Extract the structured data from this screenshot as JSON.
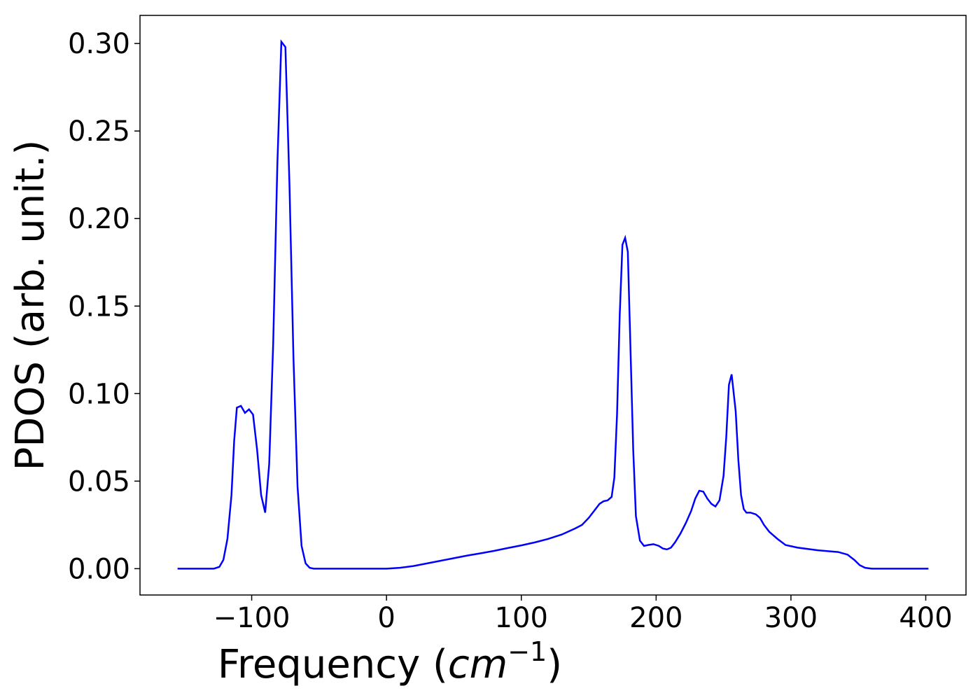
{
  "chart_data": {
    "type": "line",
    "x_label": [
      "Frequency (",
      "cm",
      "−1",
      ")"
    ],
    "y_label": "PDOS (arb. unit.)",
    "x": [
      -155,
      -140,
      -128,
      -124,
      -121,
      -118,
      -115,
      -113,
      -111,
      -108,
      -105,
      -102,
      -99,
      -96,
      -93,
      -90,
      -87,
      -84,
      -81,
      -78,
      -75,
      -72,
      -69,
      -66,
      -63,
      -60,
      -57,
      -54,
      -30,
      0,
      10,
      20,
      30,
      40,
      50,
      60,
      70,
      80,
      90,
      100,
      110,
      120,
      130,
      140,
      145,
      150,
      155,
      158,
      161,
      164,
      167,
      169,
      171,
      173,
      175,
      177,
      179,
      181,
      183,
      185,
      188,
      191,
      194,
      198,
      202,
      205,
      208,
      211,
      214,
      218,
      222,
      226,
      229,
      232,
      235,
      238,
      241,
      244,
      247,
      250,
      252,
      254,
      256,
      259,
      261,
      263,
      265,
      267,
      270,
      274,
      277,
      280,
      284,
      290,
      296,
      305,
      320,
      335,
      342,
      347,
      351,
      355,
      360,
      402
    ],
    "series": [
      {
        "color": "#0000ff",
        "values": [
          0,
          0,
          0,
          0.001,
          0.005,
          0.017,
          0.042,
          0.073,
          0.092,
          0.093,
          0.089,
          0.091,
          0.088,
          0.068,
          0.042,
          0.032,
          0.06,
          0.13,
          0.23,
          0.301,
          0.298,
          0.22,
          0.12,
          0.047,
          0.013,
          0.003,
          0.0005,
          0,
          0,
          0,
          0.0005,
          0.0015,
          0.003,
          0.0045,
          0.006,
          0.0075,
          0.0088,
          0.0102,
          0.0118,
          0.0133,
          0.015,
          0.017,
          0.0195,
          0.023,
          0.025,
          0.029,
          0.034,
          0.037,
          0.0385,
          0.039,
          0.041,
          0.052,
          0.088,
          0.145,
          0.185,
          0.189,
          0.181,
          0.125,
          0.068,
          0.03,
          0.016,
          0.013,
          0.0135,
          0.014,
          0.013,
          0.0115,
          0.011,
          0.012,
          0.015,
          0.02,
          0.026,
          0.033,
          0.04,
          0.0445,
          0.044,
          0.04,
          0.037,
          0.0355,
          0.039,
          0.053,
          0.075,
          0.105,
          0.111,
          0.09,
          0.062,
          0.042,
          0.034,
          0.032,
          0.032,
          0.031,
          0.029,
          0.025,
          0.021,
          0.017,
          0.0135,
          0.012,
          0.0105,
          0.0095,
          0.008,
          0.005,
          0.002,
          0.0005,
          0,
          0
        ]
      }
    ],
    "xlim": [
      -182.85,
      429.85
    ],
    "ylim": [
      -0.01505,
      0.31605
    ],
    "xticks": [
      {
        "value": -100,
        "label": "−100"
      },
      0,
      100,
      200,
      300,
      400
    ],
    "yticks": [
      {
        "value": 0,
        "label": "0.00"
      },
      {
        "value": 0.05,
        "label": "0.05"
      },
      {
        "value": 0.1,
        "label": "0.10"
      },
      {
        "value": 0.15,
        "label": "0.15"
      },
      {
        "value": 0.2,
        "label": "0.20"
      },
      {
        "value": 0.25,
        "label": "0.25"
      },
      {
        "value": 0.3,
        "label": "0.30"
      }
    ]
  }
}
